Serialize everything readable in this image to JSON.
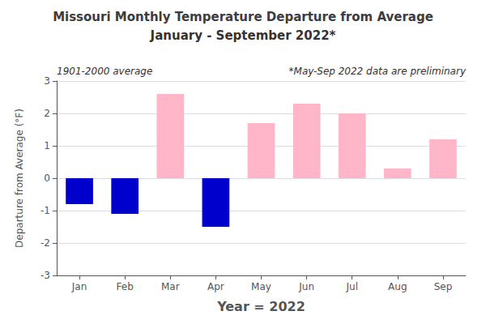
{
  "chart_data": {
    "type": "bar",
    "title": "Missouri Monthly Temperature Departure from Average",
    "subtitle": "January - September 2022*",
    "categories": [
      "Jan",
      "Feb",
      "Mar",
      "Apr",
      "May",
      "Jun",
      "Jul",
      "Aug",
      "Sep"
    ],
    "values": [
      -0.8,
      -1.1,
      2.6,
      -1.5,
      1.7,
      2.3,
      2.0,
      0.3,
      1.2
    ],
    "colors": [
      "#0000CC",
      "#0000CC",
      "#FFB6C8",
      "#0000CC",
      "#FFB6C8",
      "#FFB6C8",
      "#FFB6C8",
      "#FFB6C8",
      "#FFB6C8"
    ],
    "ylabel": "Departure from Average (°F)",
    "xlabel": "Year = 2022",
    "annotations": [
      "1901-2000 average",
      "*May-Sep 2022 data are preliminary"
    ],
    "ylim": [
      -3.0,
      3.0
    ],
    "yticks": [
      -3.0,
      -2.0,
      -1.0,
      0.0,
      1.0,
      2.0,
      3.0
    ],
    "grid": true
  }
}
